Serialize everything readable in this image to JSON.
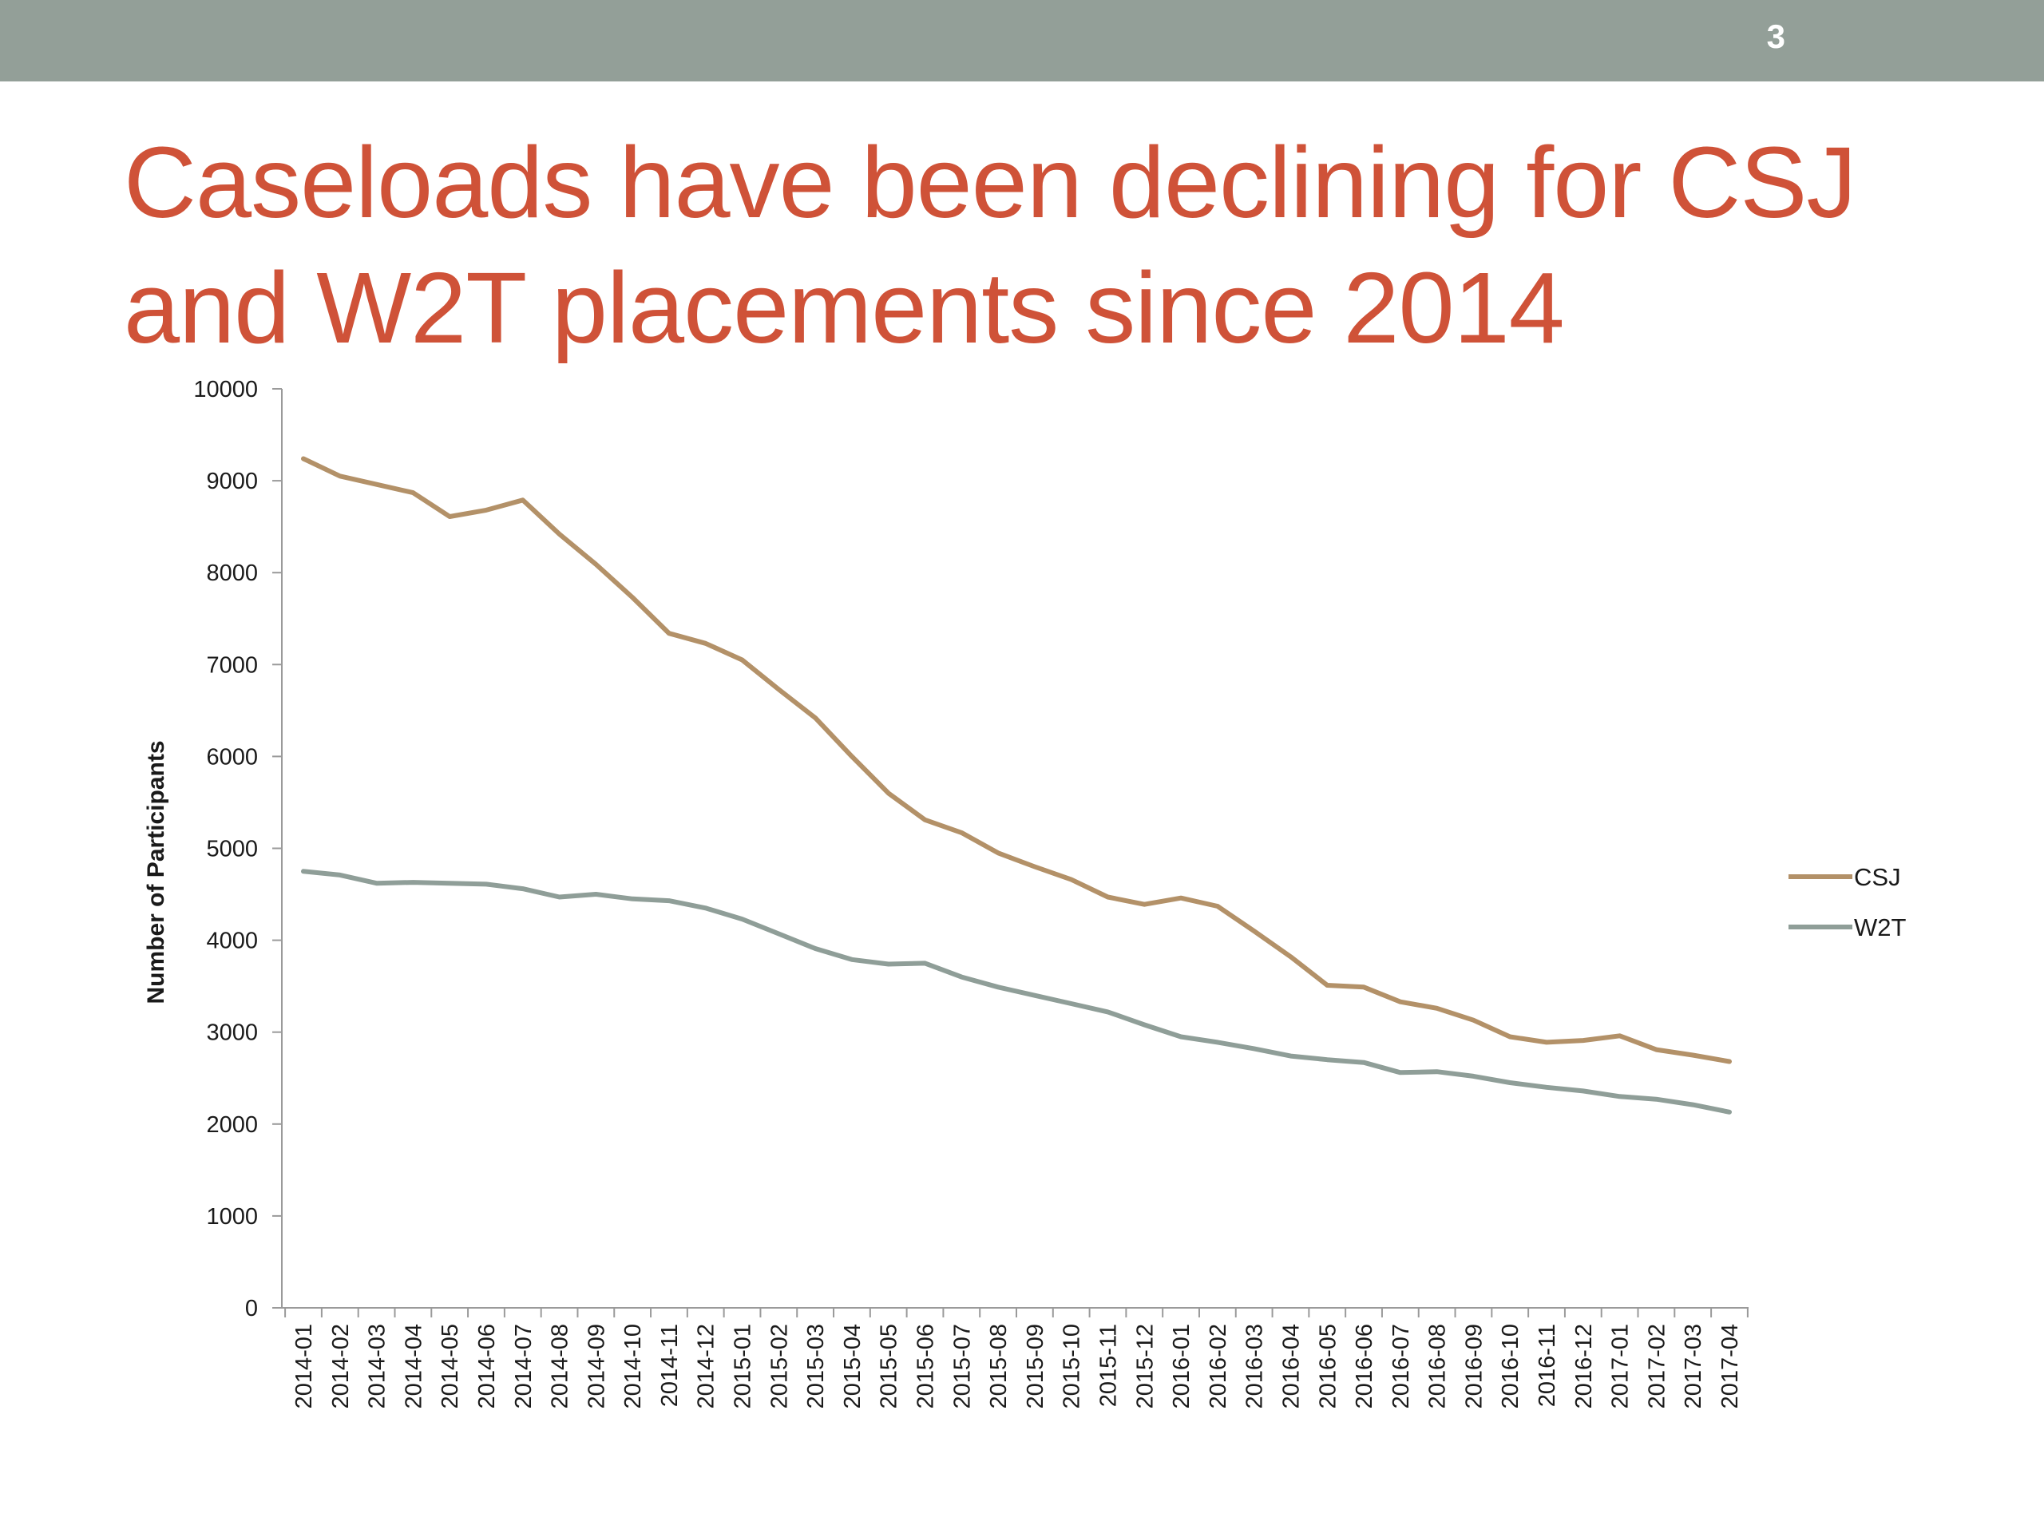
{
  "slide": {
    "number": "3",
    "title_lines": [
      "Caseloads have been declining for CSJ",
      "and W2T placements since 2014"
    ],
    "colors": {
      "topbar": "#939f98",
      "title": "#cf5238"
    }
  },
  "chart_data": {
    "type": "line",
    "title": "",
    "xlabel": "",
    "ylabel": "Number of Participants",
    "ylim": [
      0,
      10000
    ],
    "yticks": [
      0,
      1000,
      2000,
      3000,
      4000,
      5000,
      6000,
      7000,
      8000,
      9000,
      10000
    ],
    "grid": false,
    "legend": "right",
    "categories": [
      "2014-01",
      "2014-02",
      "2014-03",
      "2014-04",
      "2014-05",
      "2014-06",
      "2014-07",
      "2014-08",
      "2014-09",
      "2014-10",
      "2014-11",
      "2014-12",
      "2015-01",
      "2015-02",
      "2015-03",
      "2015-04",
      "2015-05",
      "2015-06",
      "2015-07",
      "2015-08",
      "2015-09",
      "2015-10",
      "2015-11",
      "2015-12",
      "2016-01",
      "2016-02",
      "2016-03",
      "2016-04",
      "2016-05",
      "2016-06",
      "2016-07",
      "2016-08",
      "2016-09",
      "2016-10",
      "2016-11",
      "2016-12",
      "2017-01",
      "2017-02",
      "2017-03",
      "2017-04"
    ],
    "series": [
      {
        "name": "CSJ",
        "color": "#b39168",
        "values": [
          9240,
          9050,
          8960,
          8870,
          8610,
          8680,
          8790,
          8420,
          8090,
          7730,
          7340,
          7230,
          7050,
          6730,
          6420,
          6000,
          5600,
          5310,
          5170,
          4950,
          4800,
          4660,
          4470,
          4390,
          4460,
          4370,
          4100,
          3820,
          3510,
          3490,
          3330,
          3260,
          3130,
          2950,
          2890,
          2910,
          2960,
          2810,
          2750,
          2680
        ]
      },
      {
        "name": "W2T",
        "color": "#8f9e98",
        "values": [
          4750,
          4710,
          4620,
          4630,
          4620,
          4610,
          4560,
          4470,
          4500,
          4450,
          4430,
          4350,
          4230,
          4070,
          3910,
          3790,
          3740,
          3750,
          3600,
          3490,
          3400,
          3310,
          3220,
          3080,
          2950,
          2890,
          2820,
          2740,
          2700,
          2670,
          2560,
          2570,
          2520,
          2450,
          2400,
          2360,
          2300,
          2270,
          2210,
          2130
        ]
      }
    ]
  }
}
